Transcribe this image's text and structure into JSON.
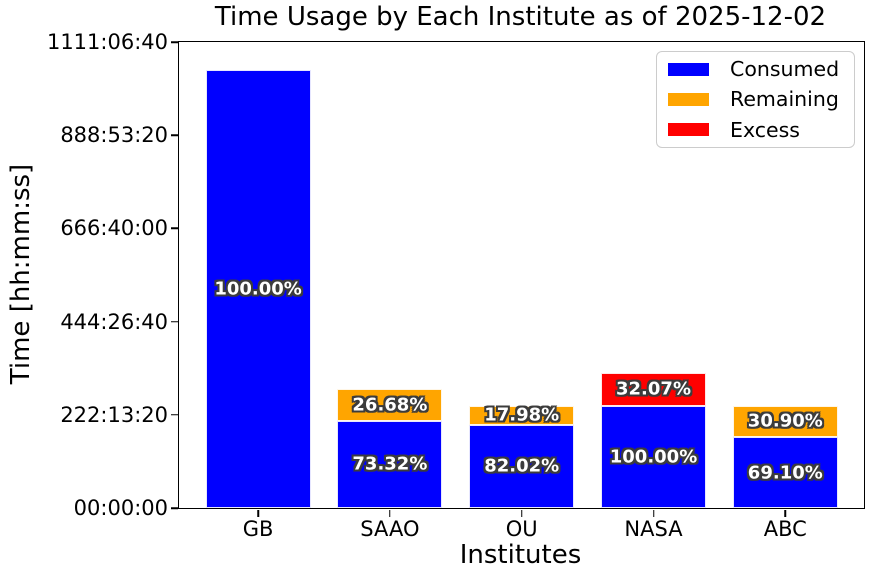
{
  "figure": {
    "title": "Time Usage by Each Institute as of 2025-12-02",
    "xlabel": "Institutes",
    "ylabel": "Time [hh:mm:ss]"
  },
  "legend": {
    "position": "upper right",
    "items": [
      {
        "label": "Consumed",
        "color": "#0000ff"
      },
      {
        "label": "Remaining",
        "color": "#ffa500"
      },
      {
        "label": "Excess",
        "color": "#ff0000"
      }
    ]
  },
  "chart_data": {
    "type": "bar",
    "stacked": true,
    "title": "Time Usage by Each Institute as of 2025-12-02",
    "xlabel": "Institutes",
    "ylabel": "Time [hh:mm:ss]",
    "categories": [
      "GB",
      "SAAO",
      "OU",
      "NASA",
      "ABC"
    ],
    "y_axis": {
      "min_seconds": 0,
      "max_seconds": 4000000,
      "tick_interval_seconds": 800000,
      "tick_labels_bottom_to_top": [
        "00:00:00",
        "222:13:20",
        "444:26:40",
        "666:40:00",
        "888:53:20",
        "1111:06:40"
      ]
    },
    "grid": false,
    "legend_position": "upper right",
    "series": [
      {
        "name": "Consumed",
        "color": "#0000ff",
        "values_seconds": [
          3758000,
          750000,
          716000,
          879000,
          607500
        ],
        "percent_labels": [
          "100.00%",
          "73.32%",
          "82.02%",
          "100.00%",
          "69.10%"
        ]
      },
      {
        "name": "Remaining",
        "color": "#ffa500",
        "values_seconds": [
          0,
          272900,
          156900,
          0,
          271700
        ],
        "percent_labels": [
          "",
          "26.68%",
          "17.98%",
          "",
          "30.90%"
        ]
      },
      {
        "name": "Excess",
        "color": "#ff0000",
        "values_seconds": [
          0,
          0,
          0,
          281900,
          0
        ],
        "percent_labels": [
          "",
          "",
          "",
          "32.07%",
          ""
        ]
      }
    ]
  }
}
